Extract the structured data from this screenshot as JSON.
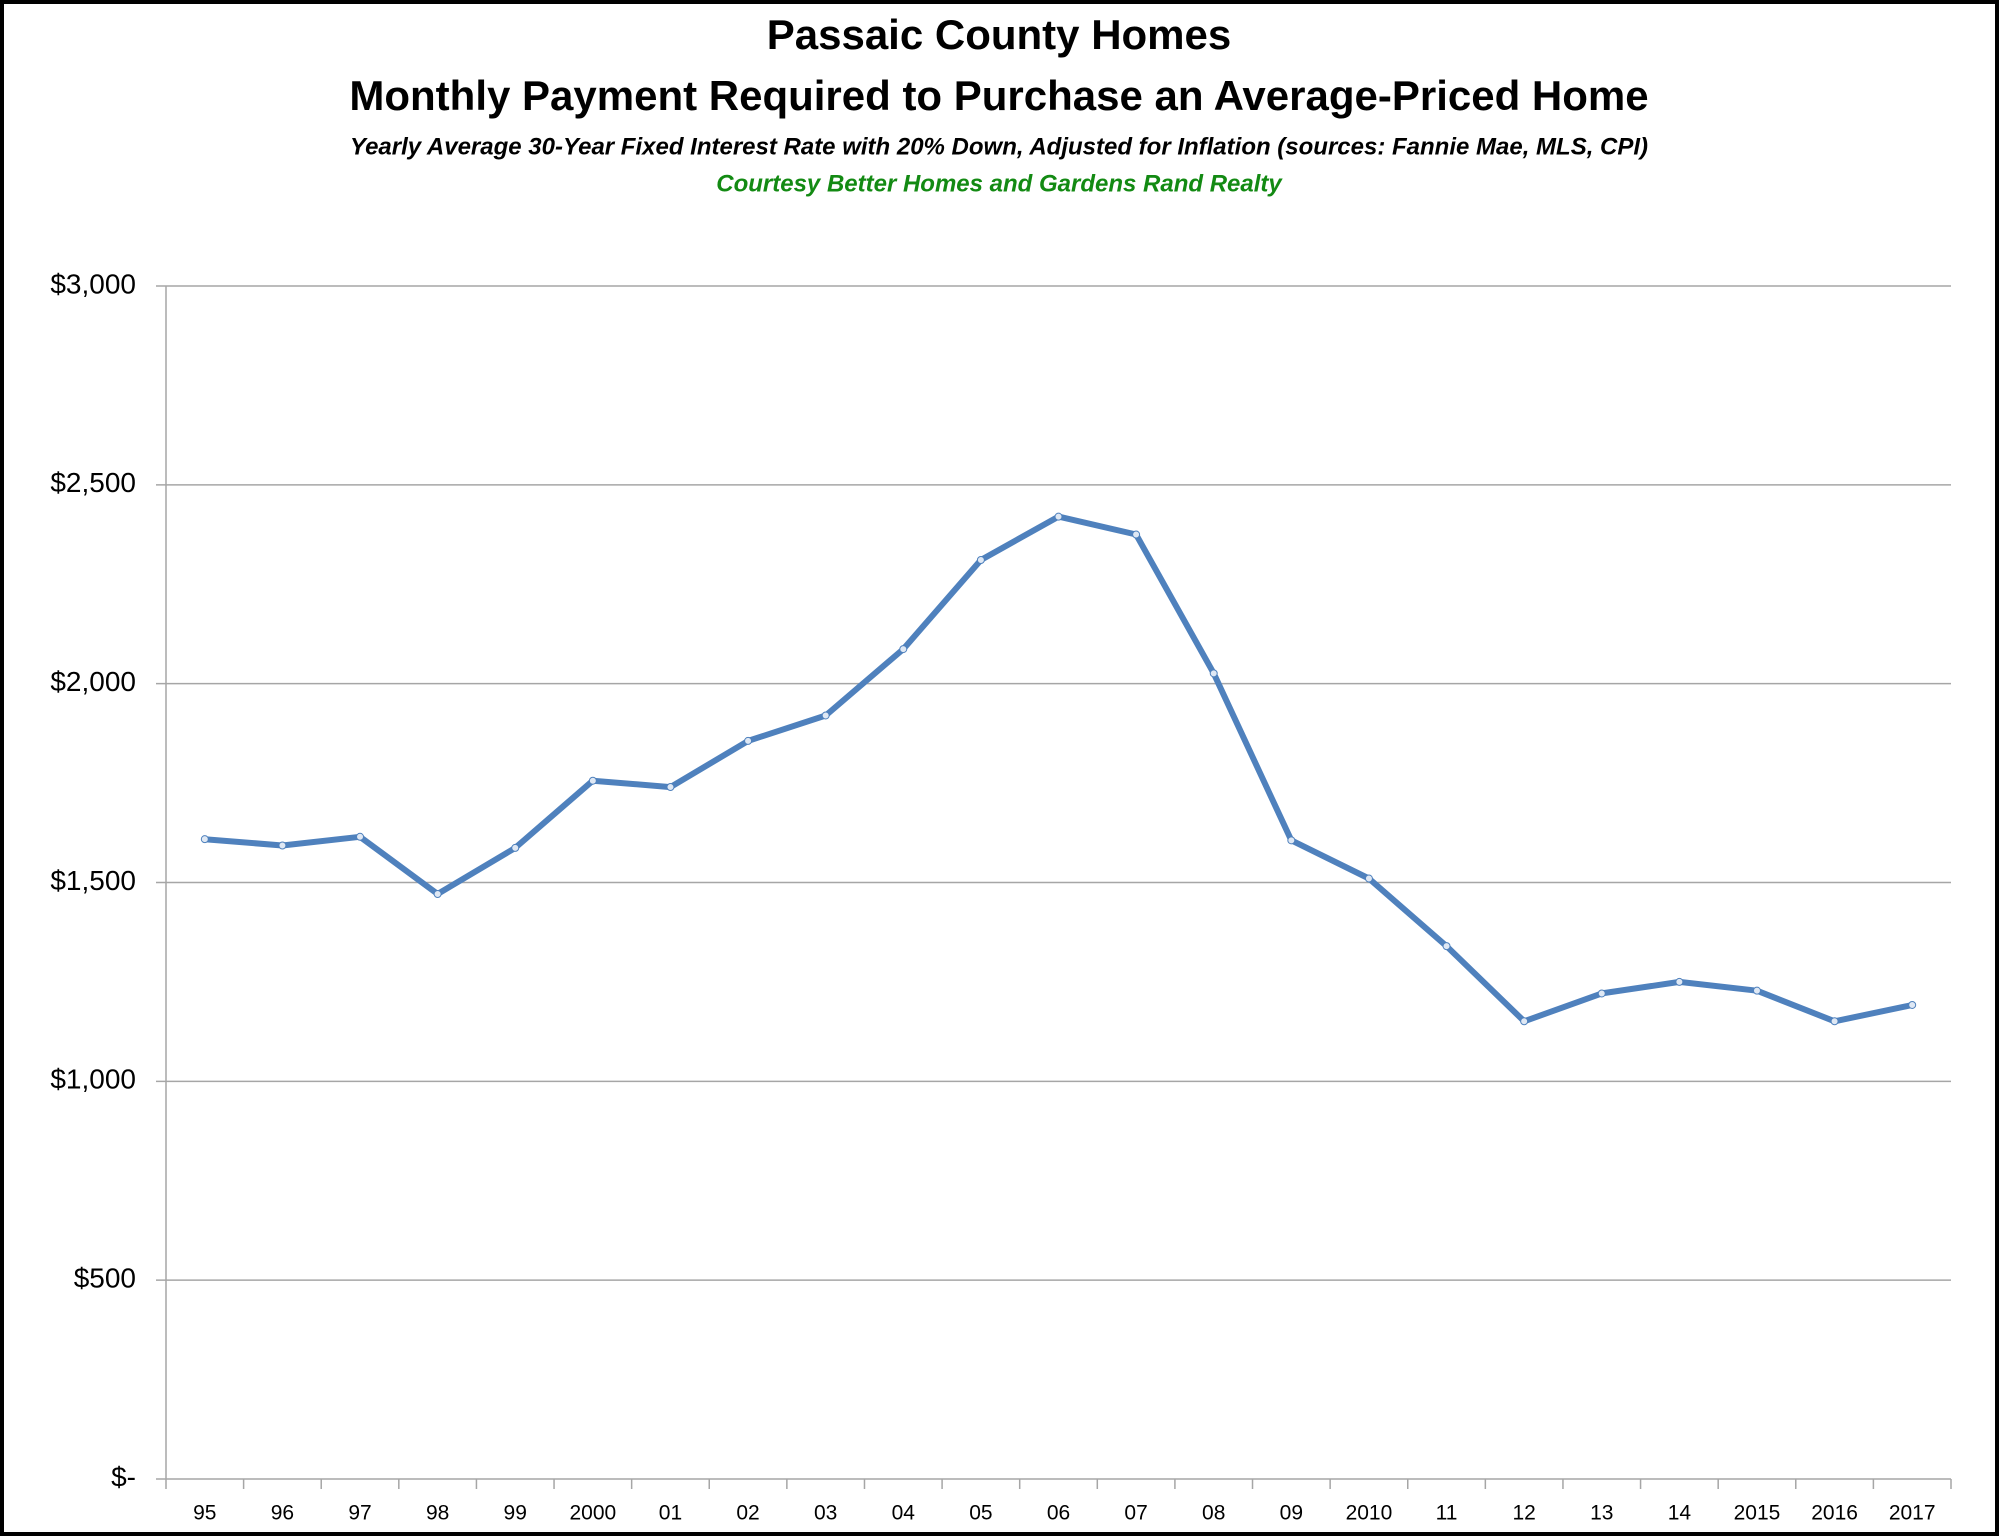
{
  "chart_data": {
    "type": "line",
    "title": "Passaic County Homes",
    "subtitle": "Monthly Payment Required to Purchase an Average-Priced Home",
    "note": "Yearly Average 30-Year Fixed Interest Rate with 20% Down, Adjusted for Inflation (sources: Fannie Mae, MLS, CPI)",
    "credit": "Courtesy Better Homes and Gardens Rand Realty",
    "categories": [
      "95",
      "96",
      "97",
      "98",
      "99",
      "2000",
      "01",
      "02",
      "03",
      "04",
      "05",
      "06",
      "07",
      "08",
      "09",
      "2010",
      "11",
      "12",
      "13",
      "14",
      "2015",
      "2016",
      "2017"
    ],
    "series": [
      {
        "color": "#4f81bd",
        "values": [
          1609,
          1593,
          1615,
          1471,
          1587,
          1756,
          1740,
          1856,
          1920,
          2087,
          2311,
          2420,
          2375,
          2026,
          1606,
          1510,
          1340,
          1151,
          1221,
          1250,
          1228,
          1151,
          1192
        ]
      }
    ],
    "ylim": [
      0,
      3000
    ],
    "yticks": [
      {
        "value": 0,
        "label": "$-"
      },
      {
        "value": 500,
        "label": "$500"
      },
      {
        "value": 1000,
        "label": "$1,000"
      },
      {
        "value": 1500,
        "label": "$1,500"
      },
      {
        "value": 2000,
        "label": "$2,000"
      },
      {
        "value": 2500,
        "label": "$2,500"
      },
      {
        "value": 3000,
        "label": "$3,000"
      }
    ],
    "grid": true
  }
}
